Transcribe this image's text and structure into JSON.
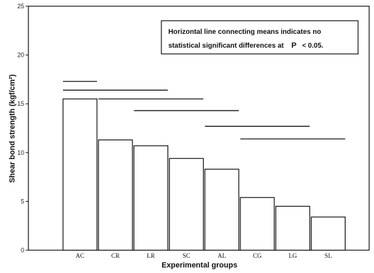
{
  "chart_data": {
    "type": "bar",
    "categories": [
      "AC",
      "CR",
      "LR",
      "SC",
      "AL",
      "CG",
      "LG",
      "SL"
    ],
    "values": [
      15.5,
      11.3,
      10.7,
      9.4,
      8.3,
      5.4,
      4.5,
      3.4
    ],
    "xlabel": "Experimental groups",
    "ylabel": "Shear bond strength (kgf/cm²)",
    "ylim": [
      0,
      25
    ],
    "yticks": [
      0,
      5,
      10,
      15,
      20,
      25
    ],
    "grid": false,
    "annotation": {
      "line1": "Horizontal line connecting means indicates no",
      "line2_prefix": "statistical significant differences at",
      "p_symbol": "P",
      "line2_suffix": "<  0.05."
    },
    "homogeneous_subsets": [
      {
        "groups": [
          "AC"
        ],
        "y": 17.3
      },
      {
        "groups": [
          "AC",
          "LR"
        ],
        "y": 16.4
      },
      {
        "groups": [
          "CR",
          "SC"
        ],
        "y": 15.5
      },
      {
        "groups": [
          "LR",
          "AL"
        ],
        "y": 14.3
      },
      {
        "groups": [
          "AL",
          "LG"
        ],
        "y": 12.7
      },
      {
        "groups": [
          "CG",
          "SL"
        ],
        "y": 11.4
      }
    ]
  }
}
